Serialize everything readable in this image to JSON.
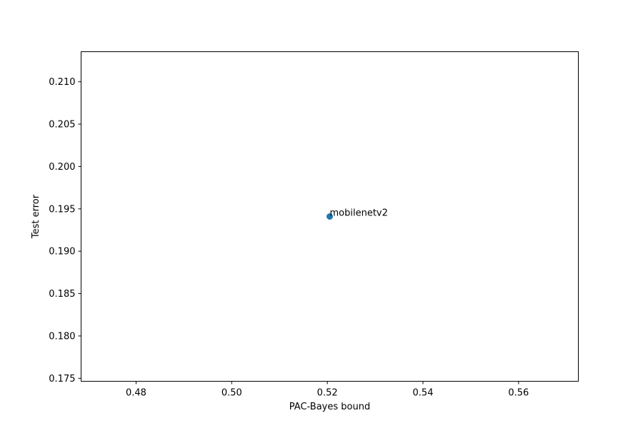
{
  "chart_data": {
    "type": "scatter",
    "title": "",
    "xlabel": "PAC-Bayes bound",
    "ylabel": "Test error",
    "xlim": [
      0.4685,
      0.5725
    ],
    "ylim": [
      0.17465,
      0.21355
    ],
    "xticks": [
      0.48,
      0.5,
      0.52,
      0.54,
      0.56
    ],
    "xtick_labels": [
      "0.48",
      "0.50",
      "0.52",
      "0.54",
      "0.56"
    ],
    "yticks": [
      0.175,
      0.18,
      0.185,
      0.19,
      0.195,
      0.2,
      0.205,
      0.21
    ],
    "ytick_labels": [
      "0.175",
      "0.180",
      "0.185",
      "0.190",
      "0.195",
      "0.200",
      "0.205",
      "0.210"
    ],
    "grid": false,
    "points": [
      {
        "x": 0.5205,
        "y": 0.1941,
        "label": "mobilenetv2"
      }
    ],
    "colors": {
      "point": "#1f77b4",
      "axes": "#000000"
    }
  }
}
